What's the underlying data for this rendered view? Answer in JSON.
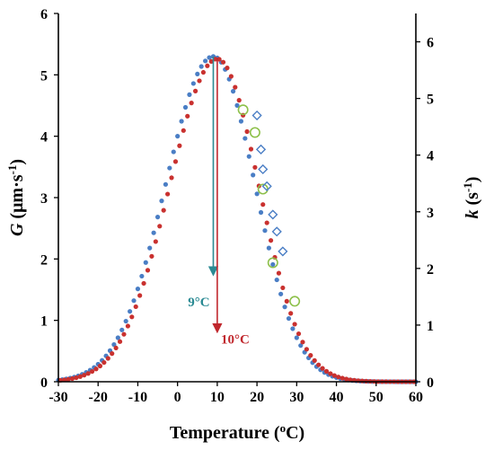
{
  "chart_data": {
    "type": "scatter",
    "xlabel": {
      "main": "Temperature (",
      "sup": "o",
      "tail": "C)"
    },
    "ylabel_left": {
      "ital": "G",
      "main": " (μm·s",
      "sup": "-1",
      "tail": ")"
    },
    "ylabel_right": {
      "ital": "k",
      "main": " (s",
      "sup": "-1",
      "tail": ")"
    },
    "xlim": [
      -30,
      60
    ],
    "ylim_left": [
      0,
      6
    ],
    "ylim_right": [
      0,
      6.5
    ],
    "x_ticks": [
      "-30",
      "-20",
      "-10",
      "0",
      "10",
      "20",
      "30",
      "40",
      "50",
      "60"
    ],
    "y_left_ticks": [
      "0",
      "1",
      "2",
      "3",
      "4",
      "5",
      "6"
    ],
    "y_right_ticks": [
      "0",
      "1",
      "2",
      "3",
      "4",
      "5",
      "6"
    ],
    "grid": false,
    "curves": [
      {
        "color": "#4a7ec5",
        "peak_x": 9,
        "peak_y": 5.3,
        "sigma_left": 12.0,
        "sigma_right": 10.5,
        "x_start": -30,
        "x_end": 60,
        "step": 1.0
      },
      {
        "color": "#c9312f",
        "peak_x": 10,
        "peak_y": 5.26,
        "sigma_left": 12.0,
        "sigma_right": 10.5,
        "x_start": -29.5,
        "x_end": 59.5,
        "step": 1.0
      }
    ],
    "k_circles": {
      "color": "#8dc04a",
      "points": [
        [
          16.5,
          4.8
        ],
        [
          19.5,
          4.4
        ],
        [
          21.5,
          3.4
        ],
        [
          24,
          2.1
        ],
        [
          29.5,
          1.42
        ]
      ]
    },
    "k_diamonds": {
      "color": "#4a7ec5",
      "points": [
        [
          20,
          4.7
        ],
        [
          21,
          4.1
        ],
        [
          21.5,
          3.75
        ],
        [
          22.5,
          3.45
        ],
        [
          24,
          2.95
        ],
        [
          25,
          2.65
        ],
        [
          26.5,
          2.3
        ]
      ]
    },
    "annotations": [
      {
        "text": "9°C",
        "x": 9,
        "y_top": 5.3,
        "y_bottom": 1.75,
        "color": "#2a8a93"
      },
      {
        "text": "10°C",
        "x": 10,
        "y_top": 5.28,
        "y_bottom": 0.82,
        "color": "#c0272d"
      }
    ]
  }
}
